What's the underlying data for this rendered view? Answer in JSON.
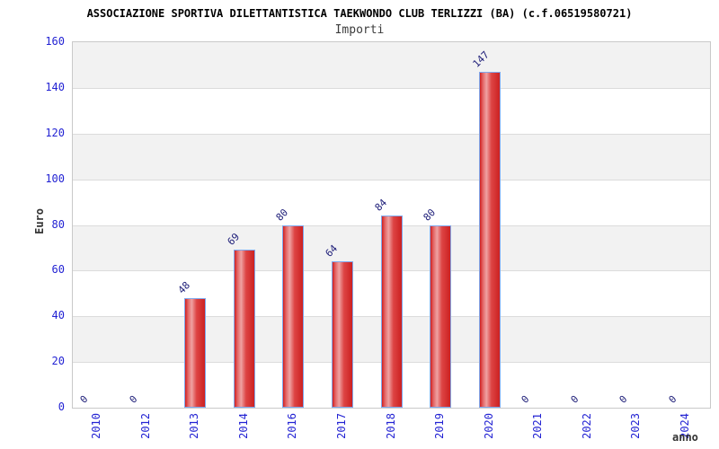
{
  "header": {
    "title": "ASSOCIAZIONE SPORTIVA DILETTANTISTICA TAEKWONDO CLUB TERLIZZI (BA) (c.f.06519580721)",
    "subtitle": "Importi"
  },
  "chart_data": {
    "type": "bar",
    "title": "ASSOCIAZIONE SPORTIVA DILETTANTISTICA TAEKWONDO CLUB TERLIZZI (BA) (c.f.06519580721)",
    "subtitle": "Importi",
    "xlabel": "anno",
    "ylabel": "Euro",
    "categories": [
      "2010",
      "2012",
      "2013",
      "2014",
      "2016",
      "2017",
      "2018",
      "2019",
      "2020",
      "2021",
      "2022",
      "2023",
      "2024"
    ],
    "values": [
      0,
      0,
      48,
      69,
      80,
      64,
      84,
      80,
      147,
      0,
      0,
      0,
      0
    ],
    "ylim": [
      0,
      160
    ],
    "ytick_step": 20,
    "yticks": [
      0,
      20,
      40,
      60,
      80,
      100,
      120,
      140,
      160
    ],
    "grid": "horizontal gridlines with alternating shaded bands",
    "legend": "none",
    "colors": {
      "bar_fill_main": "#d02020",
      "bar_fill_light": "#efa2a2",
      "bar_border": "#7fa8ec",
      "axis_tick_label": "#2323d3",
      "data_label": "#20207a",
      "band_gray": "#f2f2f2",
      "gridline": "#dcdcdc",
      "plot_border": "#c9c9c9",
      "title": "#000000",
      "subtitle": "#3c3c3c",
      "axis_title": "#333333"
    }
  }
}
